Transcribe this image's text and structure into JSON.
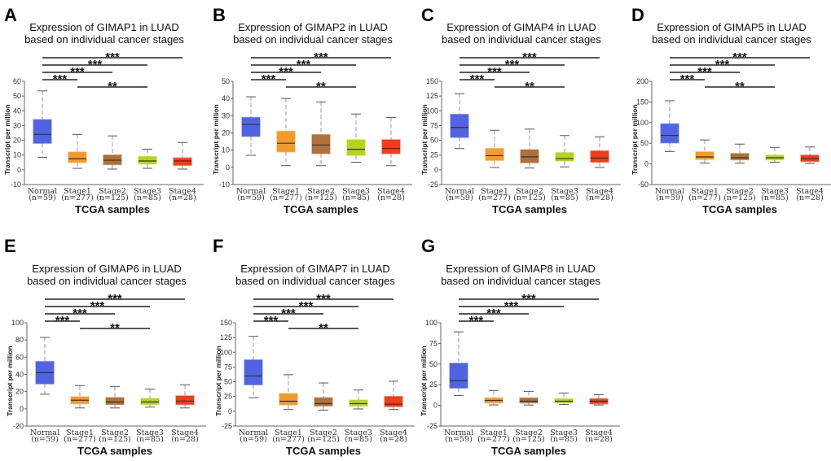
{
  "colors": {
    "Normal": "#4f63e3",
    "Stage1": "#f39a2a",
    "Stage2": "#b0703a",
    "Stage3": "#b3d617",
    "Stage4": "#f23c1a"
  },
  "chart_data": [
    {
      "panel": "A",
      "type": "box",
      "title": [
        "Expression of GIMAP1 in LUAD",
        "based on individual cancer stages"
      ],
      "ylabel": "Transcript per million",
      "xlabel": "TCGA samples",
      "categories": [
        "Normal",
        "Stage1",
        "Stage2",
        "Stage3",
        "Stage4"
      ],
      "n_labels": [
        "(n=59)",
        "(n=277)",
        "(n=125)",
        "(n=85)",
        "(n=28)"
      ],
      "ylim": [
        -10,
        60
      ],
      "yticks": [
        60,
        50,
        40,
        30,
        20,
        10,
        0,
        -10
      ],
      "boxes": [
        {
          "min": 8.5,
          "q1": 18,
          "median": 24,
          "q3": 34,
          "max": 53.5
        },
        {
          "min": 1,
          "q1": 5,
          "median": 7.5,
          "q3": 12,
          "max": 24
        },
        {
          "min": 0.5,
          "q1": 3.5,
          "median": 6.5,
          "q3": 10,
          "max": 23
        },
        {
          "min": 1,
          "q1": 4,
          "median": 6,
          "q3": 9,
          "max": 14
        },
        {
          "min": 0.5,
          "q1": 3,
          "median": 6,
          "q3": 8,
          "max": 18.5
        }
      ],
      "significance": [
        {
          "from": "Normal",
          "to": "Stage4",
          "label": "***"
        },
        {
          "from": "Normal",
          "to": "Stage3",
          "label": "***"
        },
        {
          "from": "Normal",
          "to": "Stage2",
          "label": "***"
        },
        {
          "from": "Normal",
          "to": "Stage1",
          "label": "***"
        },
        {
          "from": "Stage1",
          "to": "Stage3",
          "label": "**"
        }
      ]
    },
    {
      "panel": "B",
      "type": "box",
      "title": [
        "Expression of GIMAP2 in LUAD",
        "based on individual cancer stages"
      ],
      "ylabel": "Transcript per million",
      "xlabel": "TCGA samples",
      "categories": [
        "Normal",
        "Stage1",
        "Stage2",
        "Stage3",
        "Stage4"
      ],
      "n_labels": [
        "(n=59)",
        "(n=277)",
        "(n=125)",
        "(n=85)",
        "(n=28)"
      ],
      "ylim": [
        -10,
        50
      ],
      "yticks": [
        50,
        40,
        30,
        20,
        10,
        0,
        -10
      ],
      "boxes": [
        {
          "min": 7,
          "q1": 18,
          "median": 25,
          "q3": 29,
          "max": 41
        },
        {
          "min": 1,
          "q1": 9,
          "median": 14,
          "q3": 21,
          "max": 40
        },
        {
          "min": 1,
          "q1": 8,
          "median": 13,
          "q3": 19,
          "max": 38
        },
        {
          "min": 3,
          "q1": 7,
          "median": 10.5,
          "q3": 16,
          "max": 31
        },
        {
          "min": 1,
          "q1": 8,
          "median": 11,
          "q3": 16,
          "max": 29
        }
      ],
      "significance": [
        {
          "from": "Normal",
          "to": "Stage4",
          "label": "***"
        },
        {
          "from": "Normal",
          "to": "Stage3",
          "label": "***"
        },
        {
          "from": "Normal",
          "to": "Stage2",
          "label": "***"
        },
        {
          "from": "Normal",
          "to": "Stage1",
          "label": "***"
        },
        {
          "from": "Stage1",
          "to": "Stage3",
          "label": "**"
        }
      ]
    },
    {
      "panel": "C",
      "type": "box",
      "title": [
        "Expression of GIMAP4 in LUAD",
        "based on individual cancer stages"
      ],
      "ylabel": "Transcript per million",
      "xlabel": "TCGA samples",
      "categories": [
        "Normal",
        "Stage1",
        "Stage2",
        "Stage3",
        "Stage4"
      ],
      "n_labels": [
        "(n=59)",
        "(n=277)",
        "(n=125)",
        "(n=85)",
        "(n=28)"
      ],
      "ylim": [
        -25,
        150
      ],
      "yticks": [
        150,
        125,
        100,
        75,
        50,
        25,
        0,
        -25
      ],
      "boxes": [
        {
          "min": 36,
          "q1": 55,
          "median": 72,
          "q3": 94,
          "max": 129
        },
        {
          "min": 4,
          "q1": 16,
          "median": 24,
          "q3": 36,
          "max": 67
        },
        {
          "min": 3,
          "q1": 12,
          "median": 22,
          "q3": 34,
          "max": 69
        },
        {
          "min": 5,
          "q1": 15,
          "median": 19,
          "q3": 29,
          "max": 58
        },
        {
          "min": 4,
          "q1": 13,
          "median": 20,
          "q3": 32,
          "max": 56
        }
      ],
      "significance": [
        {
          "from": "Normal",
          "to": "Stage4",
          "label": "***"
        },
        {
          "from": "Normal",
          "to": "Stage3",
          "label": "***"
        },
        {
          "from": "Normal",
          "to": "Stage2",
          "label": "***"
        },
        {
          "from": "Normal",
          "to": "Stage1",
          "label": "***"
        },
        {
          "from": "Stage1",
          "to": "Stage3",
          "label": "**"
        }
      ]
    },
    {
      "panel": "D",
      "type": "box",
      "title": [
        "Expression of GIMAP5 in LUAD",
        "based on individual cancer stages"
      ],
      "ylabel": "Transcript per million",
      "xlabel": "TCGA samples",
      "categories": [
        "Normal",
        "Stage1",
        "Stage2",
        "Stage3",
        "Stage4"
      ],
      "n_labels": [
        "(n=59)",
        "(n=277)",
        "(n=125)",
        "(n=85)",
        "(n=28)"
      ],
      "ylim": [
        -50,
        200
      ],
      "yticks": [
        200,
        150,
        100,
        50,
        0,
        -50
      ],
      "boxes": [
        {
          "min": 30,
          "q1": 51,
          "median": 69,
          "q3": 97,
          "max": 153
        },
        {
          "min": 2,
          "q1": 11,
          "median": 17,
          "q3": 29,
          "max": 58
        },
        {
          "min": 2,
          "q1": 10,
          "median": 15,
          "q3": 25,
          "max": 48
        },
        {
          "min": 4,
          "q1": 10,
          "median": 15,
          "q3": 21,
          "max": 40
        },
        {
          "min": 1,
          "q1": 6,
          "median": 13,
          "q3": 21,
          "max": 41
        }
      ],
      "significance": [
        {
          "from": "Normal",
          "to": "Stage4",
          "label": "***"
        },
        {
          "from": "Normal",
          "to": "Stage3",
          "label": "***"
        },
        {
          "from": "Normal",
          "to": "Stage2",
          "label": "***"
        },
        {
          "from": "Normal",
          "to": "Stage1",
          "label": "***"
        },
        {
          "from": "Stage1",
          "to": "Stage3",
          "label": "**"
        }
      ]
    },
    {
      "panel": "E",
      "type": "box",
      "title": [
        "Expression of GIMAP6 in LUAD",
        "based on individual cancer stages"
      ],
      "ylabel": "Transcript per million",
      "xlabel": "TCGA samples",
      "categories": [
        "Normal",
        "Stage1",
        "Stage2",
        "Stage3",
        "Stage4"
      ],
      "n_labels": [
        "(n=59)",
        "(n=277)",
        "(n=125)",
        "(n=85)",
        "(n=28)"
      ],
      "ylim": [
        -20,
        100
      ],
      "yticks": [
        100,
        80,
        60,
        40,
        20,
        0,
        -20
      ],
      "boxes": [
        {
          "min": 17,
          "q1": 29,
          "median": 42,
          "q3": 55,
          "max": 83
        },
        {
          "min": 1,
          "q1": 6,
          "median": 10,
          "q3": 14,
          "max": 27
        },
        {
          "min": 1,
          "q1": 5,
          "median": 8,
          "q3": 13,
          "max": 26
        },
        {
          "min": 2,
          "q1": 5,
          "median": 8,
          "q3": 12,
          "max": 23
        },
        {
          "min": 1,
          "q1": 5,
          "median": 9,
          "q3": 15,
          "max": 28
        }
      ],
      "significance": [
        {
          "from": "Normal",
          "to": "Stage4",
          "label": "***"
        },
        {
          "from": "Normal",
          "to": "Stage3",
          "label": "***"
        },
        {
          "from": "Normal",
          "to": "Stage2",
          "label": "***"
        },
        {
          "from": "Normal",
          "to": "Stage1",
          "label": "***"
        },
        {
          "from": "Stage1",
          "to": "Stage3",
          "label": "**"
        }
      ]
    },
    {
      "panel": "F",
      "type": "box",
      "title": [
        "Expression of GIMAP7 in LUAD",
        "based on individual cancer stages"
      ],
      "ylabel": "Transcript per million",
      "xlabel": "TCGA samples",
      "categories": [
        "Normal",
        "Stage1",
        "Stage2",
        "Stage3",
        "Stage4"
      ],
      "n_labels": [
        "(n=59)",
        "(n=277)",
        "(n=125)",
        "(n=85)",
        "(n=28)"
      ],
      "ylim": [
        -25,
        150
      ],
      "yticks": [
        150,
        125,
        100,
        75,
        50,
        25,
        0,
        -25
      ],
      "boxes": [
        {
          "min": 23,
          "q1": 45,
          "median": 60,
          "q3": 87,
          "max": 127
        },
        {
          "min": 3,
          "q1": 11,
          "median": 17,
          "q3": 30,
          "max": 62
        },
        {
          "min": 2,
          "q1": 9,
          "median": 13,
          "q3": 23,
          "max": 48
        },
        {
          "min": 4,
          "q1": 9,
          "median": 13,
          "q3": 19,
          "max": 36
        },
        {
          "min": 3,
          "q1": 8,
          "median": 12,
          "q3": 25,
          "max": 51
        }
      ],
      "significance": [
        {
          "from": "Normal",
          "to": "Stage4",
          "label": "***"
        },
        {
          "from": "Normal",
          "to": "Stage3",
          "label": "***"
        },
        {
          "from": "Normal",
          "to": "Stage2",
          "label": "***"
        },
        {
          "from": "Normal",
          "to": "Stage1",
          "label": "***"
        },
        {
          "from": "Stage1",
          "to": "Stage3",
          "label": "**"
        }
      ]
    },
    {
      "panel": "G",
      "type": "box",
      "title": [
        "Expression of GIMAP8 in LUAD",
        "based on individual cancer stages"
      ],
      "ylabel": "Transcript per million",
      "xlabel": "TCGA samples",
      "categories": [
        "Normal",
        "Stage1",
        "Stage2",
        "Stage3",
        "Stage4"
      ],
      "n_labels": [
        "(n=59)",
        "(n=277)",
        "(n=125)",
        "(n=85)",
        "(n=28)"
      ],
      "ylim": [
        -25,
        100
      ],
      "yticks": [
        100,
        75,
        50,
        25,
        0,
        -25
      ],
      "boxes": [
        {
          "min": 12,
          "q1": 21,
          "median": 30,
          "q3": 51,
          "max": 89
        },
        {
          "min": 0.5,
          "q1": 3,
          "median": 6,
          "q3": 9,
          "max": 18
        },
        {
          "min": 0.5,
          "q1": 3,
          "median": 5,
          "q3": 9,
          "max": 17
        },
        {
          "min": 1,
          "q1": 3,
          "median": 5,
          "q3": 8,
          "max": 15
        },
        {
          "min": 0.5,
          "q1": 2,
          "median": 5,
          "q3": 8,
          "max": 13
        }
      ],
      "significance": [
        {
          "from": "Normal",
          "to": "Stage4",
          "label": "***"
        },
        {
          "from": "Normal",
          "to": "Stage3",
          "label": "***"
        },
        {
          "from": "Normal",
          "to": "Stage2",
          "label": "***"
        },
        {
          "from": "Normal",
          "to": "Stage1",
          "label": "***"
        }
      ]
    }
  ]
}
